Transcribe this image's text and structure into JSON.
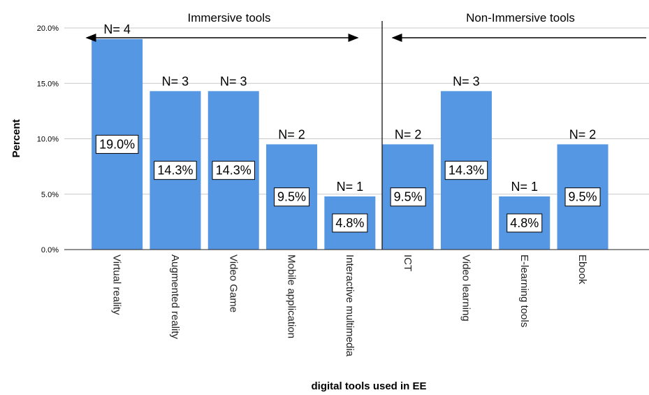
{
  "chart_data": {
    "type": "bar",
    "xlabel": "digital tools used in EE",
    "ylabel": "Percent",
    "ylim": [
      0,
      20
    ],
    "yticks": [
      "0.0%",
      "5.0%",
      "10.0%",
      "15.0%",
      "20.0%"
    ],
    "grid": true,
    "bar_color": "#5697e4",
    "categories": [
      "Virtual reality",
      "Augmented reality",
      "Video Game",
      "Mobile application",
      "Interactive multimedia",
      "ICT",
      "Video learning",
      "E-learning tools",
      "Ebook"
    ],
    "values": [
      19.0,
      14.3,
      14.3,
      9.5,
      4.8,
      9.5,
      14.3,
      4.8,
      9.5
    ],
    "value_labels": [
      "19.0%",
      "14.3%",
      "14.3%",
      "9.5%",
      "4.8%",
      "9.5%",
      "14.3%",
      "4.8%",
      "9.5%"
    ],
    "n_labels": [
      "N= 4",
      "N= 3",
      "N= 3",
      "N= 2",
      "N= 1",
      "N= 2",
      "N= 3",
      "N= 1",
      "N= 2"
    ],
    "groups": [
      {
        "label": "Immersive tools",
        "first_index": 0,
        "last_index": 4
      },
      {
        "label": "Non-Immersive tools",
        "first_index": 5,
        "last_index": 8
      }
    ]
  }
}
